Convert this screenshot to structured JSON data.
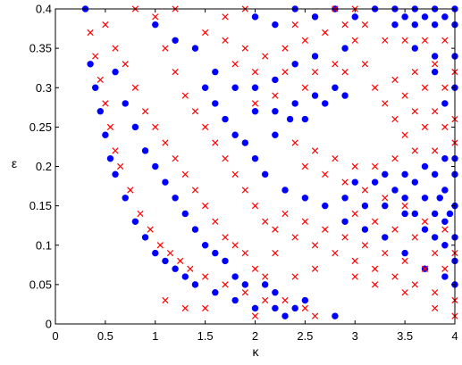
{
  "chart_data": {
    "type": "scatter",
    "title": "",
    "xlabel": "κ",
    "ylabel": "ε",
    "xlim": [
      0,
      4
    ],
    "ylim": [
      0,
      0.4
    ],
    "x_ticks": [
      0,
      0.5,
      1,
      1.5,
      2,
      2.5,
      3,
      3.5,
      4
    ],
    "x_tick_labels": [
      "0",
      "0.5",
      "1",
      "1.5",
      "2",
      "2.5",
      "3",
      "3.5",
      "4"
    ],
    "y_ticks": [
      0,
      0.05,
      0.1,
      0.15,
      0.2,
      0.25,
      0.3,
      0.35,
      0.4
    ],
    "y_tick_labels": [
      "0",
      "0.05",
      "0.1",
      "0.15",
      "0.2",
      "0.25",
      "0.3",
      "0.35",
      "0.4"
    ],
    "grid": false,
    "legend": "none",
    "series": [
      {
        "marker": "circle",
        "color": "#0000ff",
        "points": [
          [
            0.3,
            0.4
          ],
          [
            0.35,
            0.33
          ],
          [
            0.4,
            0.3
          ],
          [
            0.45,
            0.27
          ],
          [
            0.5,
            0.24
          ],
          [
            0.55,
            0.21
          ],
          [
            0.6,
            0.19
          ],
          [
            0.7,
            0.16
          ],
          [
            0.8,
            0.13
          ],
          [
            0.9,
            0.11
          ],
          [
            1.0,
            0.09
          ],
          [
            1.1,
            0.08
          ],
          [
            1.2,
            0.07
          ],
          [
            1.3,
            0.06
          ],
          [
            1.4,
            0.05
          ],
          [
            1.6,
            0.04
          ],
          [
            1.8,
            0.03
          ],
          [
            2.0,
            0.02
          ],
          [
            2.2,
            0.02
          ],
          [
            2.4,
            0.02
          ],
          [
            2.5,
            0.03
          ],
          [
            2.8,
            0.01
          ],
          [
            2.3,
            0.01
          ],
          [
            0.6,
            0.32
          ],
          [
            0.7,
            0.28
          ],
          [
            0.8,
            0.25
          ],
          [
            0.9,
            0.22
          ],
          [
            1.0,
            0.2
          ],
          [
            1.1,
            0.18
          ],
          [
            1.2,
            0.16
          ],
          [
            1.3,
            0.14
          ],
          [
            1.4,
            0.12
          ],
          [
            1.5,
            0.1
          ],
          [
            1.6,
            0.09
          ],
          [
            1.7,
            0.08
          ],
          [
            1.8,
            0.06
          ],
          [
            1.9,
            0.05
          ],
          [
            2.1,
            0.05
          ],
          [
            2.2,
            0.04
          ],
          [
            1.0,
            0.38
          ],
          [
            1.2,
            0.36
          ],
          [
            1.4,
            0.35
          ],
          [
            1.5,
            0.3
          ],
          [
            1.6,
            0.28
          ],
          [
            1.7,
            0.26
          ],
          [
            1.8,
            0.24
          ],
          [
            1.9,
            0.23
          ],
          [
            2.0,
            0.21
          ],
          [
            2.1,
            0.19
          ],
          [
            2.3,
            0.17
          ],
          [
            2.5,
            0.16
          ],
          [
            2.7,
            0.15
          ],
          [
            2.9,
            0.13
          ],
          [
            3.1,
            0.12
          ],
          [
            3.3,
            0.11
          ],
          [
            3.5,
            0.09
          ],
          [
            3.7,
            0.07
          ],
          [
            3.9,
            0.06
          ],
          [
            4.0,
            0.05
          ],
          [
            1.6,
            0.32
          ],
          [
            1.8,
            0.3
          ],
          [
            2.0,
            0.3
          ],
          [
            2.2,
            0.31
          ],
          [
            2.4,
            0.33
          ],
          [
            2.6,
            0.34
          ],
          [
            2.0,
            0.27
          ],
          [
            2.2,
            0.27
          ],
          [
            2.4,
            0.28
          ],
          [
            2.6,
            0.29
          ],
          [
            2.8,
            0.3
          ],
          [
            2.5,
            0.26
          ],
          [
            2.7,
            0.28
          ],
          [
            2.9,
            0.29
          ],
          [
            2.2,
            0.24
          ],
          [
            2.35,
            0.26
          ],
          [
            2.9,
            0.35
          ],
          [
            2.0,
            0.39
          ],
          [
            2.2,
            0.38
          ],
          [
            2.4,
            0.4
          ],
          [
            2.6,
            0.39
          ],
          [
            2.8,
            0.4
          ],
          [
            3.0,
            0.39
          ],
          [
            3.2,
            0.4
          ],
          [
            3.4,
            0.4
          ],
          [
            3.6,
            0.4
          ],
          [
            3.8,
            0.4
          ],
          [
            4.0,
            0.4
          ],
          [
            3.5,
            0.39
          ],
          [
            3.7,
            0.39
          ],
          [
            3.9,
            0.39
          ],
          [
            3.4,
            0.38
          ],
          [
            3.6,
            0.38
          ],
          [
            3.8,
            0.38
          ],
          [
            4.0,
            0.38
          ],
          [
            3.6,
            0.35
          ],
          [
            3.8,
            0.34
          ],
          [
            4.0,
            0.34
          ],
          [
            3.8,
            0.32
          ],
          [
            4.0,
            0.3
          ],
          [
            3.9,
            0.28
          ],
          [
            3.2,
            0.18
          ],
          [
            3.4,
            0.17
          ],
          [
            3.6,
            0.18
          ],
          [
            3.8,
            0.19
          ],
          [
            4.0,
            0.19
          ],
          [
            3.5,
            0.16
          ],
          [
            3.7,
            0.16
          ],
          [
            3.9,
            0.17
          ],
          [
            3.6,
            0.14
          ],
          [
            3.8,
            0.14
          ],
          [
            4.0,
            0.15
          ],
          [
            3.7,
            0.12
          ],
          [
            3.9,
            0.13
          ],
          [
            4.0,
            0.11
          ],
          [
            3.9,
            0.1
          ],
          [
            4.0,
            0.08
          ],
          [
            3.8,
            0.11
          ],
          [
            3.5,
            0.14
          ],
          [
            2.9,
            0.16
          ],
          [
            3.0,
            0.18
          ],
          [
            3.1,
            0.15
          ],
          [
            3.3,
            0.15
          ],
          [
            3.3,
            0.19
          ],
          [
            3.5,
            0.19
          ],
          [
            3.7,
            0.2
          ],
          [
            3.9,
            0.21
          ],
          [
            4.0,
            0.21
          ],
          [
            3.85,
            0.16
          ],
          [
            3.95,
            0.14
          ]
        ]
      },
      {
        "marker": "x",
        "color": "#ff0000",
        "points": [
          [
            0.35,
            0.37
          ],
          [
            0.4,
            0.34
          ],
          [
            0.45,
            0.31
          ],
          [
            0.5,
            0.28
          ],
          [
            0.55,
            0.25
          ],
          [
            0.6,
            0.22
          ],
          [
            0.65,
            0.2
          ],
          [
            0.75,
            0.17
          ],
          [
            0.85,
            0.14
          ],
          [
            0.95,
            0.12
          ],
          [
            1.05,
            0.1
          ],
          [
            1.15,
            0.09
          ],
          [
            1.25,
            0.08
          ],
          [
            1.35,
            0.07
          ],
          [
            1.5,
            0.06
          ],
          [
            1.7,
            0.05
          ],
          [
            1.9,
            0.04
          ],
          [
            2.1,
            0.03
          ],
          [
            2.3,
            0.03
          ],
          [
            2.5,
            0.02
          ],
          [
            2.6,
            0.01
          ],
          [
            2.0,
            0.01
          ],
          [
            0.5,
            0.38
          ],
          [
            0.6,
            0.35
          ],
          [
            0.7,
            0.33
          ],
          [
            0.8,
            0.3
          ],
          [
            0.9,
            0.27
          ],
          [
            1.0,
            0.25
          ],
          [
            1.1,
            0.23
          ],
          [
            1.2,
            0.21
          ],
          [
            1.3,
            0.19
          ],
          [
            1.4,
            0.17
          ],
          [
            1.5,
            0.15
          ],
          [
            1.6,
            0.13
          ],
          [
            1.7,
            0.11
          ],
          [
            1.8,
            0.1
          ],
          [
            1.9,
            0.09
          ],
          [
            2.0,
            0.07
          ],
          [
            2.1,
            0.06
          ],
          [
            0.8,
            0.4
          ],
          [
            1.0,
            0.39
          ],
          [
            1.1,
            0.35
          ],
          [
            1.2,
            0.32
          ],
          [
            1.3,
            0.29
          ],
          [
            1.4,
            0.27
          ],
          [
            1.5,
            0.25
          ],
          [
            1.6,
            0.23
          ],
          [
            1.7,
            0.21
          ],
          [
            1.8,
            0.19
          ],
          [
            1.9,
            0.17
          ],
          [
            2.0,
            0.15
          ],
          [
            2.1,
            0.13
          ],
          [
            2.2,
            0.12
          ],
          [
            2.4,
            0.11
          ],
          [
            2.6,
            0.1
          ],
          [
            2.8,
            0.09
          ],
          [
            3.0,
            0.08
          ],
          [
            3.2,
            0.07
          ],
          [
            3.4,
            0.06
          ],
          [
            3.6,
            0.05
          ],
          [
            3.8,
            0.04
          ],
          [
            4.0,
            0.03
          ],
          [
            1.5,
            0.37
          ],
          [
            1.7,
            0.36
          ],
          [
            1.9,
            0.35
          ],
          [
            2.1,
            0.34
          ],
          [
            2.3,
            0.35
          ],
          [
            2.5,
            0.36
          ],
          [
            2.7,
            0.37
          ],
          [
            2.9,
            0.38
          ],
          [
            3.1,
            0.38
          ],
          [
            1.8,
            0.33
          ],
          [
            2.0,
            0.32
          ],
          [
            2.3,
            0.32
          ],
          [
            2.6,
            0.32
          ],
          [
            2.9,
            0.32
          ],
          [
            3.1,
            0.33
          ],
          [
            3.2,
            0.3
          ],
          [
            3.4,
            0.31
          ],
          [
            3.6,
            0.32
          ],
          [
            3.8,
            0.33
          ],
          [
            4.0,
            0.32
          ],
          [
            3.3,
            0.28
          ],
          [
            3.5,
            0.29
          ],
          [
            3.7,
            0.3
          ],
          [
            3.9,
            0.3
          ],
          [
            3.4,
            0.26
          ],
          [
            3.6,
            0.27
          ],
          [
            3.8,
            0.27
          ],
          [
            4.0,
            0.26
          ],
          [
            3.5,
            0.24
          ],
          [
            3.7,
            0.25
          ],
          [
            3.9,
            0.25
          ],
          [
            2.4,
            0.23
          ],
          [
            2.6,
            0.22
          ],
          [
            2.8,
            0.21
          ],
          [
            3.0,
            0.2
          ],
          [
            3.2,
            0.2
          ],
          [
            3.4,
            0.21
          ],
          [
            3.6,
            0.22
          ],
          [
            3.8,
            0.22
          ],
          [
            4.0,
            0.23
          ],
          [
            2.5,
            0.2
          ],
          [
            2.7,
            0.19
          ],
          [
            2.9,
            0.18
          ],
          [
            3.1,
            0.17
          ],
          [
            3.3,
            0.16
          ],
          [
            3.5,
            0.15
          ],
          [
            3.7,
            0.13
          ],
          [
            3.9,
            0.12
          ],
          [
            3.0,
            0.14
          ],
          [
            3.2,
            0.13
          ],
          [
            3.4,
            0.12
          ],
          [
            3.6,
            0.11
          ],
          [
            3.8,
            0.09
          ],
          [
            4.0,
            0.09
          ],
          [
            2.7,
            0.12
          ],
          [
            2.9,
            0.11
          ],
          [
            3.1,
            0.1
          ],
          [
            3.3,
            0.09
          ],
          [
            3.5,
            0.08
          ],
          [
            3.7,
            0.07
          ],
          [
            3.9,
            0.07
          ],
          [
            3.0,
            0.06
          ],
          [
            3.2,
            0.05
          ],
          [
            3.5,
            0.04
          ],
          [
            3.8,
            0.02
          ],
          [
            4.0,
            0.01
          ],
          [
            1.3,
            0.02
          ],
          [
            1.5,
            0.02
          ],
          [
            1.1,
            0.03
          ],
          [
            2.4,
            0.06
          ],
          [
            2.6,
            0.07
          ],
          [
            2.2,
            0.09
          ],
          [
            2.3,
            0.14
          ],
          [
            2.5,
            0.13
          ],
          [
            2.0,
            0.28
          ],
          [
            2.2,
            0.29
          ],
          [
            2.5,
            0.3
          ],
          [
            2.8,
            0.33
          ],
          [
            3.0,
            0.36
          ],
          [
            3.3,
            0.36
          ],
          [
            3.5,
            0.36
          ],
          [
            3.7,
            0.36
          ],
          [
            3.9,
            0.36
          ],
          [
            2.8,
            0.4
          ],
          [
            3.0,
            0.4
          ],
          [
            2.4,
            0.38
          ],
          [
            1.7,
            0.39
          ],
          [
            1.9,
            0.4
          ],
          [
            1.2,
            0.4
          ]
        ]
      }
    ]
  }
}
